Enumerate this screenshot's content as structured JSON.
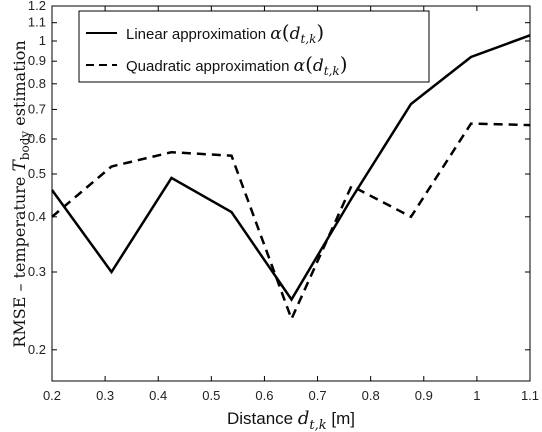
{
  "chart_data": {
    "type": "line",
    "xlabel": "Distance d_{t,k} [m]",
    "ylabel": "RMSE – temperature T_body estimation",
    "xlim": [
      0.2,
      1.1
    ],
    "ylim": [
      0.17,
      1.2
    ],
    "yscale": "log",
    "grid": false,
    "legend_position": "top-left",
    "x_ticks": [
      "0.2",
      "0.3",
      "0.4",
      "0.5",
      "0.6",
      "0.7",
      "0.8",
      "0.9",
      "1",
      "1.1"
    ],
    "x_tick_values": [
      0.2,
      0.3,
      0.4,
      0.5,
      0.6,
      0.7,
      0.8,
      0.9,
      1.0,
      1.1
    ],
    "y_ticks": [
      "0.2",
      "0.3",
      "0.4",
      "0.5",
      "0.6",
      "0.7",
      "0.8",
      "0.9",
      "1",
      "1.1",
      "1.2"
    ],
    "y_tick_values": [
      0.2,
      0.3,
      0.4,
      0.5,
      0.6,
      0.7,
      0.8,
      0.9,
      1.0,
      1.1,
      1.2
    ],
    "series": [
      {
        "name": "Linear approximation α(d_{t,k})",
        "style": "solid",
        "color": "#000000",
        "x": [
          0.2,
          0.312,
          0.425,
          0.538,
          0.651,
          0.764,
          0.876,
          0.989,
          1.1
        ],
        "y": [
          0.46,
          0.3,
          0.49,
          0.41,
          0.26,
          0.44,
          0.72,
          0.92,
          1.03
        ]
      },
      {
        "name": "Quadratic approximation α(d_{t,k})",
        "style": "dashed",
        "color": "#000000",
        "x": [
          0.2,
          0.312,
          0.425,
          0.538,
          0.651,
          0.764,
          0.876,
          0.989,
          1.1
        ],
        "y": [
          0.4,
          0.52,
          0.56,
          0.55,
          0.235,
          0.47,
          0.4,
          0.65,
          0.645
        ]
      }
    ]
  },
  "legend": {
    "linear_text": "Linear approximation ",
    "quadratic_text": "Quadratic approximation ",
    "alpha": "α",
    "lparen": "(",
    "rparen": ")",
    "d": "d",
    "sub_tk": "t,k"
  },
  "labels": {
    "x_prefix": "Distance ",
    "x_d": "d",
    "x_sub": "t,k",
    "x_suffix": " [m]",
    "y_prefix": "RMSE – temperature ",
    "y_T": "T",
    "y_sub": "body",
    "y_suffix": " estimation"
  }
}
